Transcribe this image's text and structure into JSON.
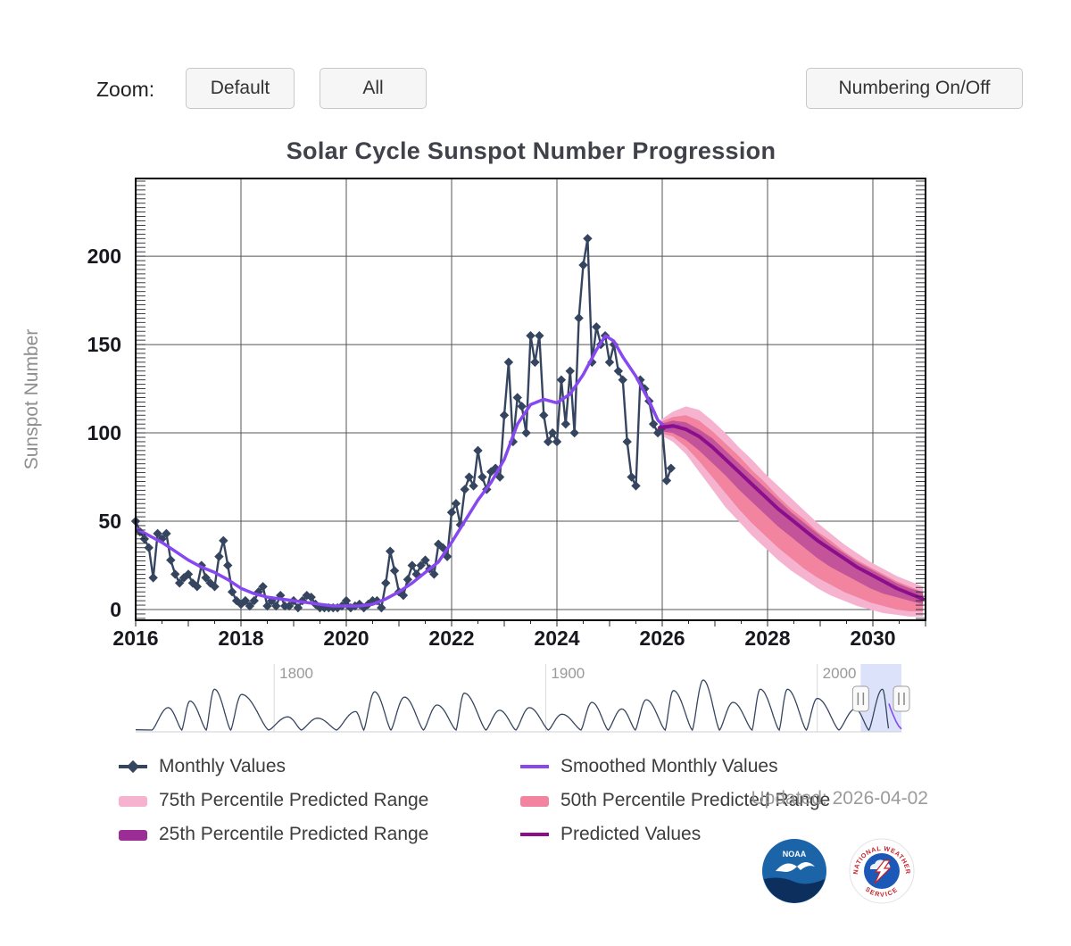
{
  "controls": {
    "zoom_label": "Zoom:",
    "default_button": "Default",
    "all_button": "All",
    "numbering_button": "Numbering On/Off"
  },
  "chart": {
    "title": "Solar Cycle Sunspot Number Progression",
    "updated_text": "Updated: 2026-04-02"
  },
  "legend": {
    "items": [
      {
        "label": "Monthly Values",
        "type": "line-diamond",
        "color": "#36455F"
      },
      {
        "label": "Smoothed Monthly Values",
        "type": "line",
        "color": "#8748F0"
      },
      {
        "label": "75th Percentile Predicted Range",
        "type": "band",
        "color": "#F6B3D0"
      },
      {
        "label": "50th Percentile Predicted Range",
        "type": "band",
        "color": "#F2849F"
      },
      {
        "label": "25th Percentile Predicted Range",
        "type": "band",
        "color": "#9C2D96"
      },
      {
        "label": "Predicted Values",
        "type": "line",
        "color": "#8B0E8B"
      }
    ]
  },
  "colors": {
    "monthly": "#36455F",
    "smoothed": "#8748F0",
    "predicted": "#8B0E8B",
    "band75": "#F6B3D0",
    "band50": "#F2849F",
    "band25": "#9C2D96",
    "grid": "#555555",
    "axis_label": "#17171f",
    "axis_title": "#8e8e8e",
    "selection_fill": "#B9C5F5",
    "navigator_line": "#36455F",
    "navigator_label": "#9a9a9a",
    "noaa_blue": "#1B64A8",
    "noaa_dark": "#0D2F5E",
    "nws_blue": "#1B58B8",
    "nws_red": "#C8242C"
  },
  "logos": {
    "noaa_text": "NOAA",
    "nws_top_text": "NATIONAL WEATHER",
    "nws_bottom_text": "SERVICE"
  },
  "chart_data": {
    "type": "line",
    "title": "Solar Cycle Sunspot Number Progression",
    "xlabel": "",
    "ylabel": "Sunspot Number",
    "xlim": [
      2016,
      2031
    ],
    "ylim": [
      -6.06,
      244
    ],
    "x_ticks": [
      2016,
      2018,
      2020,
      2022,
      2024,
      2026,
      2028,
      2030
    ],
    "y_ticks": [
      0,
      50,
      100,
      150,
      200
    ],
    "grid": true,
    "legend_position": "bottom",
    "monthly": {
      "name": "Monthly Values",
      "x_start": 2016,
      "x_step_months": 1,
      "y": [
        50,
        44,
        40,
        35,
        18,
        43,
        40,
        43,
        28,
        20,
        15,
        18,
        20,
        15,
        13,
        25,
        18,
        15,
        13,
        30,
        39,
        25,
        10,
        5,
        3,
        5,
        2,
        5,
        10,
        13,
        2,
        5,
        2,
        8,
        2,
        2,
        5,
        1,
        5,
        8,
        7,
        3,
        1,
        1,
        1,
        1,
        1,
        2,
        5,
        1,
        2,
        3,
        1,
        3,
        5,
        5,
        1,
        15,
        33,
        22,
        10,
        8,
        17,
        25,
        20,
        25,
        28,
        23,
        20,
        37,
        35,
        30,
        55,
        60,
        48,
        68,
        75,
        70,
        90,
        75,
        68,
        78,
        80,
        75,
        110,
        140,
        95,
        120,
        115,
        100,
        155,
        140,
        155,
        110,
        95,
        100,
        95,
        130,
        105,
        135,
        100,
        165,
        195,
        210,
        140,
        160,
        150,
        155,
        140,
        150,
        135,
        130,
        95,
        75,
        70,
        130,
        125,
        118,
        105,
        100,
        103,
        73,
        80
      ]
    },
    "smoothed": {
      "name": "Smoothed Monthly Values",
      "x": [
        2016.0,
        2016.25,
        2016.5,
        2016.75,
        2017.0,
        2017.25,
        2017.5,
        2017.75,
        2018.0,
        2018.25,
        2018.5,
        2018.75,
        2019.0,
        2019.25,
        2019.5,
        2019.75,
        2020.0,
        2020.25,
        2020.5,
        2020.75,
        2021.0,
        2021.25,
        2021.5,
        2021.75,
        2022.0,
        2022.25,
        2022.5,
        2022.75,
        2023.0,
        2023.25,
        2023.5,
        2023.75,
        2024.0,
        2024.25,
        2024.5,
        2024.75,
        2024.92,
        2025.08,
        2025.25,
        2025.5,
        2025.75,
        2025.92,
        2026.08,
        2026.33
      ],
      "y": [
        46,
        42,
        38,
        33,
        28,
        24,
        21,
        17,
        12,
        9,
        7,
        6,
        5,
        4,
        3,
        2,
        2,
        2,
        3,
        6,
        10,
        15,
        21,
        27,
        38,
        50,
        62,
        72,
        85,
        105,
        116,
        119,
        117,
        122,
        133,
        147,
        155,
        152,
        143,
        132,
        118,
        107,
        103,
        104
      ]
    },
    "prediction": {
      "name": "Predicted Values",
      "x": [
        2025.95,
        2026.2,
        2026.45,
        2026.7,
        2026.95,
        2027.2,
        2027.45,
        2027.7,
        2027.95,
        2028.2,
        2028.45,
        2028.7,
        2028.95,
        2029.2,
        2029.45,
        2029.7,
        2029.95,
        2030.2,
        2030.45,
        2030.7,
        2030.95
      ],
      "values": [
        103,
        104,
        102,
        98,
        92,
        85,
        78,
        71,
        64,
        57,
        51,
        45,
        39,
        34,
        29,
        24,
        20,
        16,
        12,
        9,
        6
      ],
      "p75_upper": [
        107,
        112,
        115,
        113,
        107,
        100,
        92,
        85,
        77,
        70,
        63,
        56,
        49,
        43,
        37,
        32,
        27,
        23,
        19,
        16,
        13
      ],
      "p75_lower": [
        99,
        95,
        88,
        78,
        68,
        58,
        50,
        42,
        35,
        28,
        22,
        17,
        12,
        8,
        5,
        2,
        0,
        -2,
        -3,
        -4,
        -4
      ],
      "p50_upper": [
        106,
        109,
        110,
        107,
        101,
        94,
        87,
        79,
        72,
        64,
        57,
        51,
        44,
        39,
        33,
        28,
        24,
        20,
        16,
        13,
        10
      ],
      "p50_lower": [
        100,
        98,
        92,
        84,
        75,
        66,
        57,
        49,
        42,
        35,
        29,
        23,
        18,
        14,
        10,
        7,
        4,
        2,
        0,
        -1,
        -1
      ],
      "p25_upper": [
        105,
        107,
        106,
        102,
        97,
        90,
        83,
        76,
        69,
        62,
        55,
        49,
        43,
        37,
        32,
        27,
        23,
        19,
        15,
        12,
        10
      ],
      "p25_lower": [
        101,
        100,
        96,
        90,
        83,
        76,
        68,
        61,
        54,
        47,
        41,
        35,
        29,
        24,
        20,
        16,
        12,
        9,
        7,
        5,
        3
      ]
    },
    "navigator": {
      "xlim": [
        1749,
        2031
      ],
      "decade_labels": [
        1800,
        1900,
        2000
      ],
      "selection": {
        "start": 2016,
        "end": 2031
      },
      "cycles": [
        [
          1755,
          1761,
          1766,
          85
        ],
        [
          1766,
          1769,
          1775,
          110
        ],
        [
          1775,
          1778,
          1784,
          155
        ],
        [
          1784,
          1788,
          1798,
          135
        ],
        [
          1798,
          1805,
          1810,
          50
        ],
        [
          1810,
          1816,
          1823,
          45
        ],
        [
          1823,
          1830,
          1833,
          70
        ],
        [
          1833,
          1837,
          1843,
          145
        ],
        [
          1843,
          1848,
          1855,
          125
        ],
        [
          1855,
          1860,
          1867,
          95
        ],
        [
          1867,
          1870,
          1878,
          140
        ],
        [
          1878,
          1883,
          1889,
          75
        ],
        [
          1889,
          1894,
          1901,
          85
        ],
        [
          1901,
          1906,
          1913,
          60
        ],
        [
          1913,
          1917,
          1923,
          105
        ],
        [
          1923,
          1928,
          1933,
          80
        ],
        [
          1933,
          1937,
          1944,
          115
        ],
        [
          1944,
          1947,
          1954,
          150
        ],
        [
          1954,
          1958,
          1964,
          190
        ],
        [
          1964,
          1969,
          1976,
          105
        ],
        [
          1976,
          1979,
          1986,
          155
        ],
        [
          1986,
          1989,
          1996,
          155
        ],
        [
          1996,
          2000,
          2008,
          120
        ],
        [
          2008,
          2014,
          2019,
          80
        ],
        [
          2019,
          2024,
          2026.4,
          155
        ]
      ],
      "predicted_tail": [
        [
          2026.4,
          100
        ],
        [
          2027,
          82
        ],
        [
          2028,
          56
        ],
        [
          2029,
          33
        ],
        [
          2030,
          15
        ],
        [
          2031,
          4
        ]
      ]
    }
  }
}
